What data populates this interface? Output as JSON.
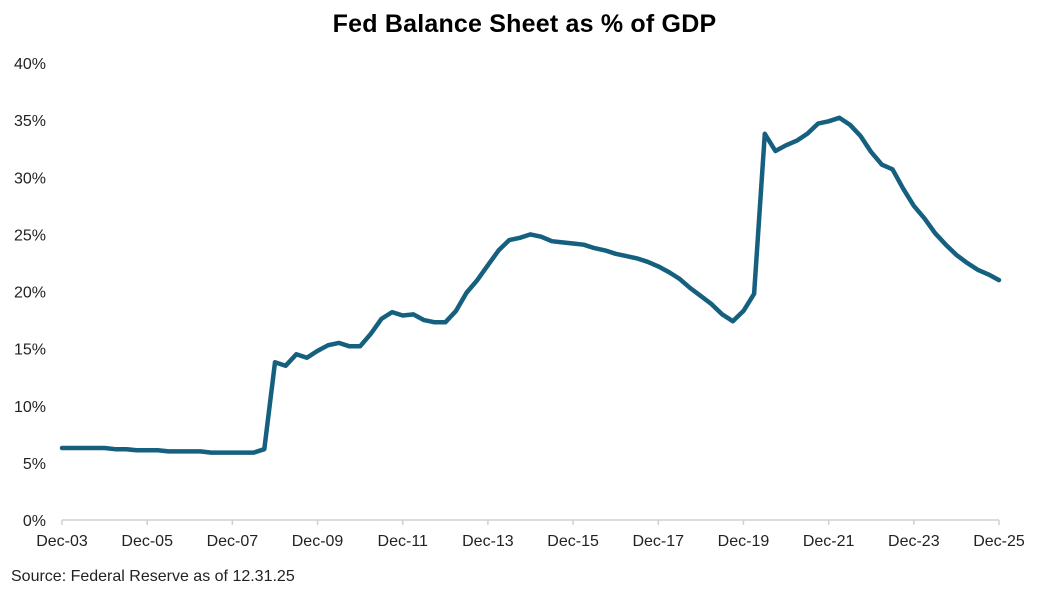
{
  "chart_data": {
    "type": "line",
    "title": "Fed Balance Sheet as % of GDP",
    "xlabel": "",
    "ylabel": "",
    "source": "Source: Federal Reserve as of 12.31.25",
    "ylim": [
      0,
      40
    ],
    "y_ticks": [
      "0%",
      "5%",
      "10%",
      "15%",
      "20%",
      "25%",
      "30%",
      "35%",
      "40%"
    ],
    "y_tick_values": [
      0,
      5,
      10,
      15,
      20,
      25,
      30,
      35,
      40
    ],
    "x_tick_labels": [
      "Dec-03",
      "Dec-05",
      "Dec-07",
      "Dec-09",
      "Dec-11",
      "Dec-13",
      "Dec-15",
      "Dec-17",
      "Dec-19",
      "Dec-21",
      "Dec-23",
      "Dec-25"
    ],
    "x_tick_years": [
      2003.917,
      2005.917,
      2007.917,
      2009.917,
      2011.917,
      2013.917,
      2015.917,
      2017.917,
      2019.917,
      2021.917,
      2023.917,
      2025.917
    ],
    "xlim": [
      2003.917,
      2025.917
    ],
    "grid": false,
    "legend": "none",
    "series": [
      {
        "name": "Fed Balance Sheet % of GDP",
        "color": "#16607f",
        "x_start": 2003.917,
        "x_step_years": 0.25,
        "values": [
          6.3,
          6.3,
          6.3,
          6.3,
          6.3,
          6.2,
          6.2,
          6.1,
          6.1,
          6.1,
          6.0,
          6.0,
          6.0,
          6.0,
          5.9,
          5.9,
          5.9,
          5.9,
          5.9,
          6.2,
          13.8,
          13.5,
          14.5,
          14.2,
          14.8,
          15.3,
          15.5,
          15.2,
          15.2,
          16.3,
          17.6,
          18.2,
          17.9,
          18.0,
          17.5,
          17.3,
          17.3,
          18.3,
          19.9,
          21.0,
          22.3,
          23.6,
          24.5,
          24.7,
          25.0,
          24.8,
          24.4,
          24.3,
          24.2,
          24.1,
          23.8,
          23.6,
          23.3,
          23.1,
          22.9,
          22.6,
          22.2,
          21.7,
          21.1,
          20.3,
          19.6,
          18.9,
          18.0,
          17.4,
          18.3,
          19.8,
          33.8,
          32.3,
          32.8,
          33.2,
          33.8,
          34.7,
          34.9,
          35.2,
          34.6,
          33.6,
          32.2,
          31.1,
          30.7,
          29.0,
          27.5,
          26.4,
          25.1,
          24.1,
          23.2,
          22.5,
          21.9,
          21.5,
          21.0
        ]
      }
    ]
  }
}
